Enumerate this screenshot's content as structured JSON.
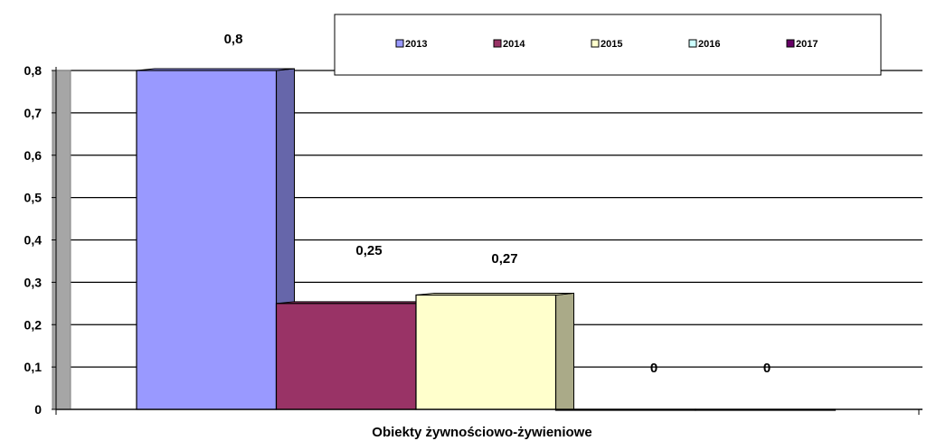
{
  "chart_data": {
    "type": "bar",
    "categories": [
      "Obiekty żywnościowo-żywieniowe"
    ],
    "series": [
      {
        "name": "2013",
        "values": [
          0.8
        ],
        "color": "#9999FF",
        "side_color": "#6666AA",
        "data_label": "0,8"
      },
      {
        "name": "2014",
        "values": [
          0.25
        ],
        "color": "#993366",
        "side_color": "#662244",
        "data_label": "0,25"
      },
      {
        "name": "2015",
        "values": [
          0.27
        ],
        "color": "#FFFFCC",
        "side_color": "#AAAA88",
        "data_label": "0,27"
      },
      {
        "name": "2016",
        "values": [
          0
        ],
        "color": "#CCFFFF",
        "side_color": "#88AAAA",
        "data_label": "0"
      },
      {
        "name": "2017",
        "values": [
          0
        ],
        "color": "#660066",
        "side_color": "#440044",
        "data_label": "0"
      }
    ],
    "xlabel": "Obiekty żywnościowo-żywieniowe",
    "ylabel": "",
    "ylim": [
      0,
      0.8
    ],
    "yticks": [
      "0",
      "0,1",
      "0,2",
      "0,3",
      "0,4",
      "0,5",
      "0,6",
      "0,7",
      "0,8"
    ],
    "grid": true,
    "legend_position": "top-right"
  }
}
